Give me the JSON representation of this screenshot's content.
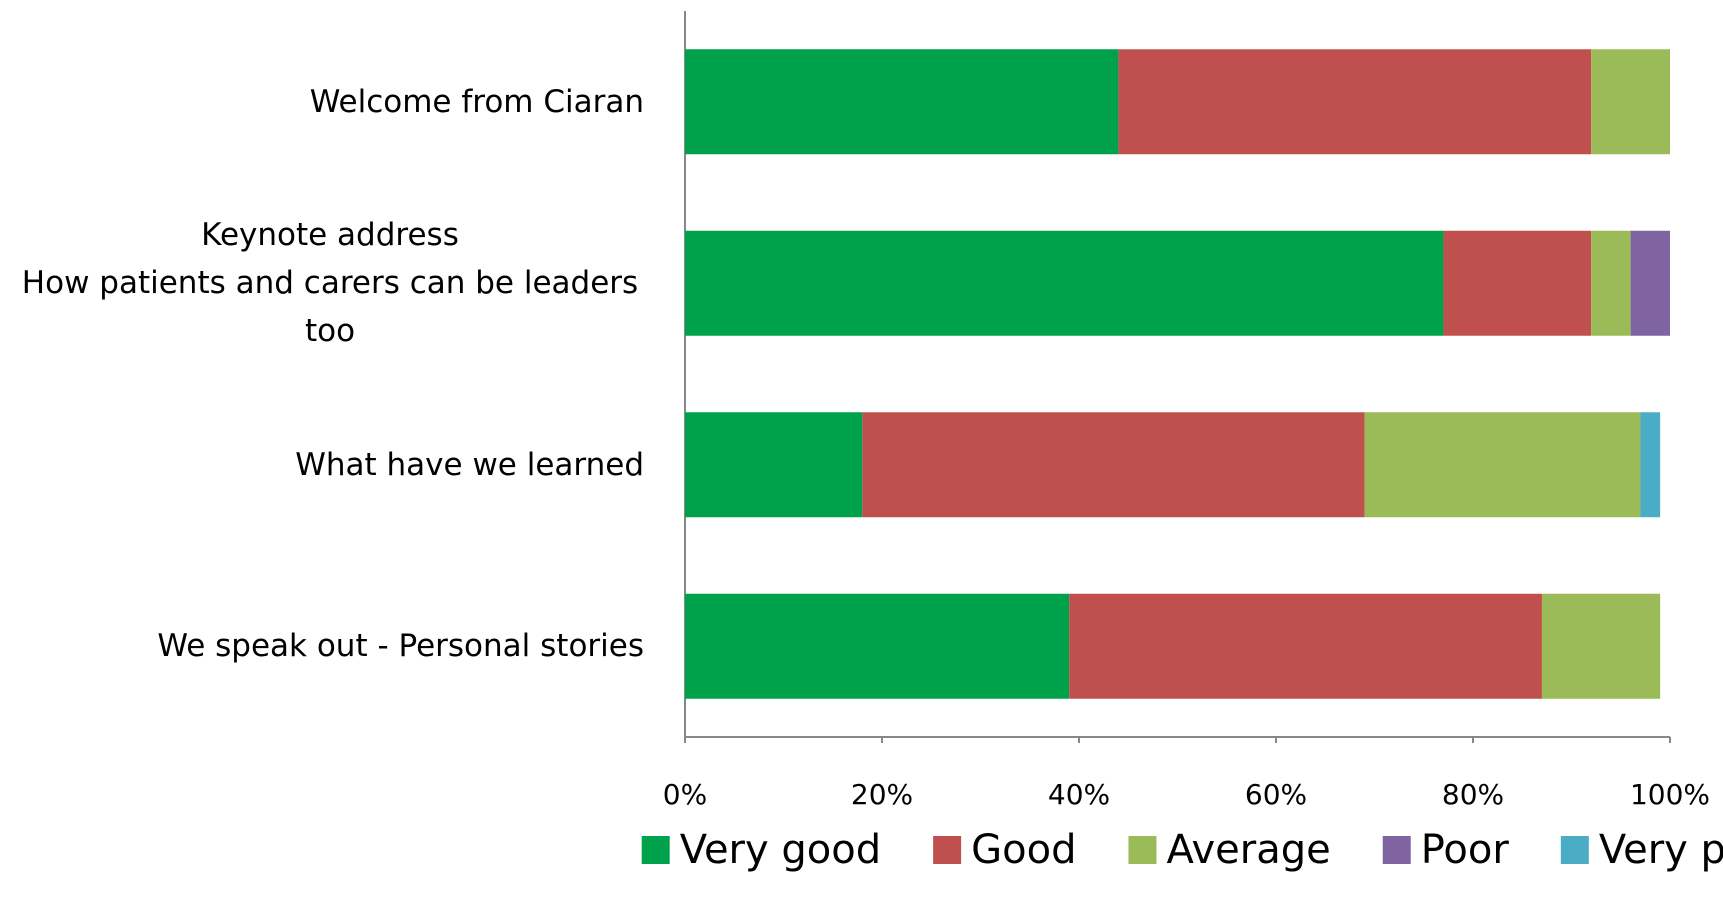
{
  "chart_data": {
    "type": "stacked-bar-horizontal",
    "categories": [
      "Welcome from Ciaran",
      "Keynote address\nHow patients and carers can be leaders\ntoo",
      "What have we learned",
      "We speak out - Personal stories"
    ],
    "series": [
      {
        "name": "Very good",
        "color": "#00a14b",
        "values": [
          44,
          77,
          18,
          39
        ]
      },
      {
        "name": "Good",
        "color": "#c0504d",
        "values": [
          48,
          15,
          51,
          48
        ]
      },
      {
        "name": "Average",
        "color": "#9bbb59",
        "values": [
          8,
          4,
          28,
          12
        ]
      },
      {
        "name": "Poor",
        "color": "#8064a2",
        "values": [
          0,
          4,
          0,
          0
        ]
      },
      {
        "name": "Very poor",
        "color": "#4bacc6",
        "values": [
          0,
          0,
          2,
          0
        ]
      }
    ],
    "xlim": [
      0,
      100
    ],
    "xticks": [
      {
        "value": 0,
        "label": "0%"
      },
      {
        "value": 20,
        "label": "20%"
      },
      {
        "value": 40,
        "label": "40%"
      },
      {
        "value": 60,
        "label": "60%"
      },
      {
        "value": 80,
        "label": "80%"
      },
      {
        "value": 100,
        "label": "100%"
      }
    ],
    "legend": "bottom"
  }
}
